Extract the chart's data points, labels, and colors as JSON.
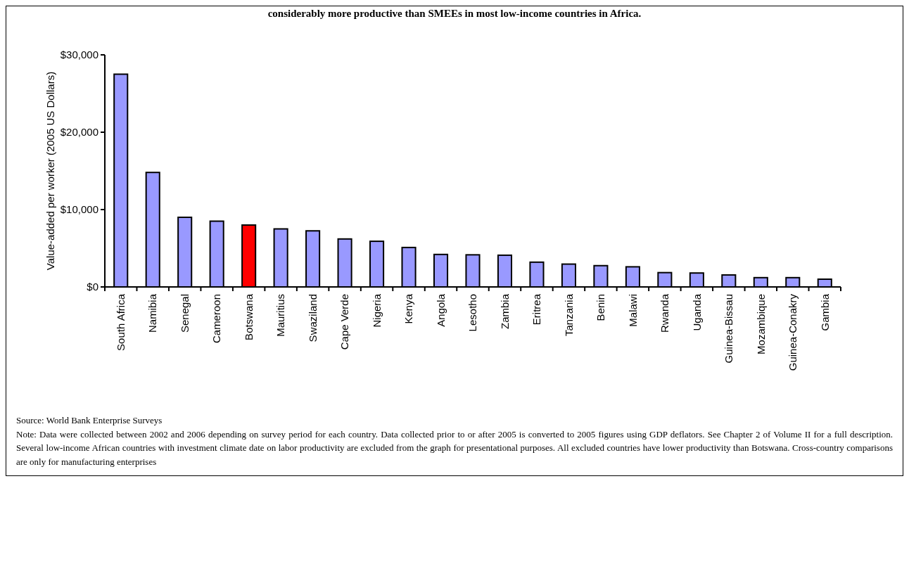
{
  "chart_data": {
    "type": "bar",
    "title": "considerably more productive than SMEEs in most low-income countries in Africa.",
    "ylabel": "Value-added per worker (2005 US Dollars)",
    "categories": [
      "South Africa",
      "Namibia",
      "Senegal",
      "Cameroon",
      "Botswana",
      "Mauritius",
      "Swaziland",
      "Cape Verde",
      "Nigeria",
      "Kenya",
      "Angola",
      "Lesotho",
      "Zambia",
      "Eritrea",
      "Tanzania",
      "Benin",
      "Malawi",
      "Rwanda",
      "Uganda",
      "Guinea-Bissau",
      "Mozambique",
      "Guinea-Conakry",
      "Gambia"
    ],
    "values": [
      27500,
      14800,
      9000,
      8500,
      8000,
      7500,
      7250,
      6200,
      5900,
      5100,
      4200,
      4150,
      4100,
      3200,
      2950,
      2750,
      2600,
      1850,
      1800,
      1550,
      1200,
      1200,
      1000
    ],
    "colors": [
      "#9999ff",
      "#9999ff",
      "#9999ff",
      "#9999ff",
      "#ff0000",
      "#9999ff",
      "#9999ff",
      "#9999ff",
      "#9999ff",
      "#9999ff",
      "#9999ff",
      "#9999ff",
      "#9999ff",
      "#9999ff",
      "#9999ff",
      "#9999ff",
      "#9999ff",
      "#9999ff",
      "#9999ff",
      "#9999ff",
      "#9999ff",
      "#9999ff",
      "#9999ff"
    ],
    "ylim": [
      0,
      30000
    ],
    "yticks": [
      {
        "value": 0,
        "label": "$0"
      },
      {
        "value": 10000,
        "label": "$10,000"
      },
      {
        "value": 20000,
        "label": "$20,000"
      },
      {
        "value": 30000,
        "label": "$30,000"
      }
    ],
    "annotations": [
      "Source: World Bank Enterprise Surveys",
      "Note:  Data were collected between 2002 and 2006 depending on survey period for each country.  Data collected prior to or after 2005 is converted to 2005 figures using GDP deflators.  See Chapter 2 of Volume II for a full description.  Several low-income African countries with investment climate date on labor productivity are excluded from the graph for presentational purposes.  All excluded countries have lower productivity than Botswana. Cross-country comparisons are only for manufacturing enterprises"
    ]
  }
}
